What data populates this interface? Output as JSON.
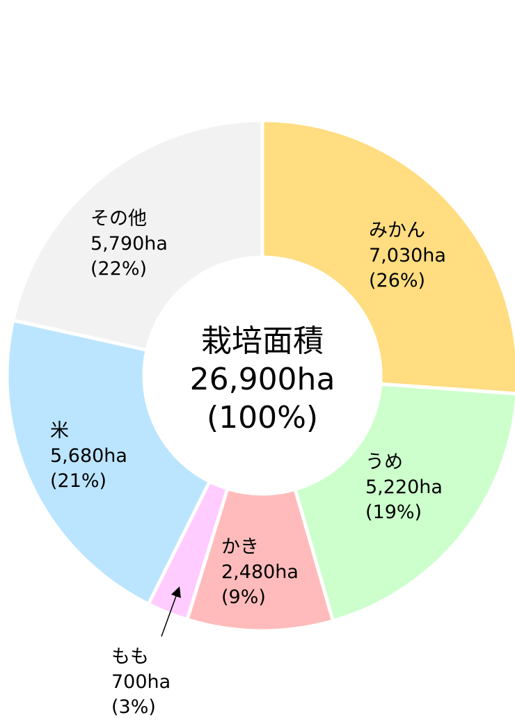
{
  "chart_data": {
    "type": "donut",
    "categories": [
      "みかん",
      "うめ",
      "かき",
      "もも",
      "米",
      "その他"
    ],
    "values": [
      7030,
      5220,
      2480,
      700,
      5680,
      5790
    ],
    "value_labels": [
      "7,030ha",
      "5,220ha",
      "2,480ha",
      "700ha",
      "5,680ha",
      "5,790ha"
    ],
    "percents": [
      26,
      19,
      9,
      3,
      21,
      22
    ],
    "percent_labels": [
      "(26%)",
      "(19%)",
      "(9%)",
      "(3%)",
      "(21%)",
      "(22%)"
    ],
    "colors": [
      "#ffdd80",
      "#ccffcc",
      "#ffbbbb",
      "#ffccff",
      "#bbe5ff",
      "#f2f2f2"
    ],
    "center_title": "栽培面積",
    "total": 26900,
    "total_label": "26,900ha",
    "total_percent": 100,
    "total_percent_label": "(100%)"
  }
}
